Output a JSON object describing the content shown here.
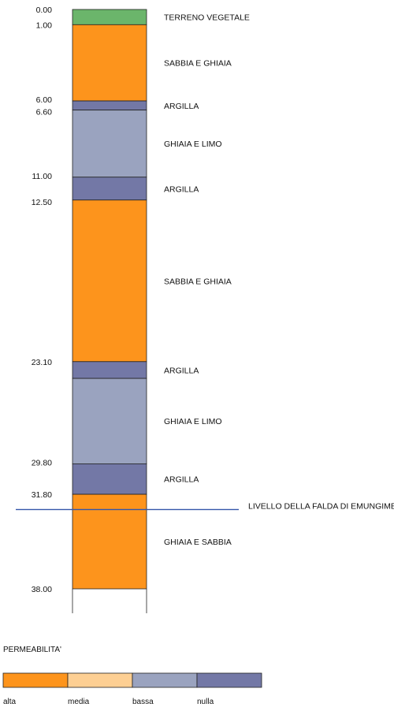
{
  "column": {
    "layers": [
      {
        "top": 0.0,
        "bottom": 1.0,
        "label": "TERRENO VEGETALE",
        "color": "#6bb56b"
      },
      {
        "top": 1.0,
        "bottom": 6.0,
        "label": "SABBIA E GHIAIA",
        "color": "#fd941c"
      },
      {
        "top": 6.0,
        "bottom": 6.6,
        "label": "ARGILLA",
        "color": "#7378a6"
      },
      {
        "top": 6.6,
        "bottom": 11.0,
        "label": "GHIAIA E LIMO",
        "color": "#9aa3bf"
      },
      {
        "top": 11.0,
        "bottom": 12.5,
        "label": "ARGILLA",
        "color": "#7378a6"
      },
      {
        "top": 12.5,
        "bottom": 23.1,
        "label": "SABBIA E GHIAIA",
        "color": "#fd941c"
      },
      {
        "top": 23.1,
        "bottom": 24.2,
        "label": "ARGILLA",
        "color": "#7378a6"
      },
      {
        "top": 24.2,
        "bottom": 29.8,
        "label": "GHIAIA E LIMO",
        "color": "#9aa3bf"
      },
      {
        "top": 29.8,
        "bottom": 31.8,
        "label": "ARGILLA",
        "color": "#7378a6"
      },
      {
        "top": 31.8,
        "bottom": 38.0,
        "label": "GHIAIA E SABBIA",
        "color": "#fd941c"
      }
    ],
    "depth_labels": [
      "0.00",
      "1.00",
      "6.00",
      "6.60",
      "11.00",
      "12.50",
      "23.10",
      "29.80",
      "31.80",
      "38.00"
    ],
    "depth_values": [
      0.0,
      1.0,
      6.0,
      6.6,
      11.0,
      12.5,
      23.1,
      29.8,
      31.8,
      38.0
    ],
    "bottom_extension": 1.6
  },
  "water_table": {
    "depth": 32.8,
    "label": "LIVELLO DELLA FALDA DI EMUNGIMENTO",
    "color": "#3355aa"
  },
  "legend": {
    "title": "PERMEABILITA'",
    "items": [
      {
        "label": "alta",
        "color": "#fd941c"
      },
      {
        "label": "media",
        "color": "#fdcf93"
      },
      {
        "label": "bassa",
        "color": "#9aa3bf"
      },
      {
        "label": "nulla",
        "color": "#7378a6"
      }
    ]
  }
}
